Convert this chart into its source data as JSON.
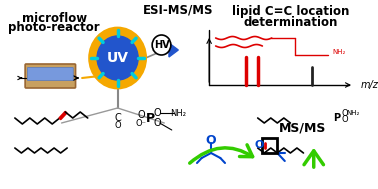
{
  "bg_color": "#ffffff",
  "title_text1": "microflow",
  "title_text2": "photo-reactor",
  "title_esi": "ESI-MS/MS",
  "title_lipid": "lipid C=C location",
  "title_det": "determination",
  "title_msms": "MS/MS",
  "mz_label": "m/z",
  "uv_label": "UV",
  "hv_label": "HV",
  "uv_circle_color": "#F5A800",
  "uv_inner_color": "#2255CC",
  "uv_ray_color": "#00CCDD",
  "hv_circle_color": "#333333",
  "arrow_color_black": "#222222",
  "arrow_color_green": "#33CC00",
  "arrow_color_gold": "#F5A800",
  "ms_bar_red": "#DD0000",
  "ms_bar_black": "#222222",
  "lipid_color_red": "#DD0000",
  "lipid_color_black": "#222222",
  "lipid_color_blue": "#0044CC",
  "acetone_color_blue": "#0044CC",
  "oxetane_red": "#DD0000",
  "reactor_color": "#C8A060"
}
